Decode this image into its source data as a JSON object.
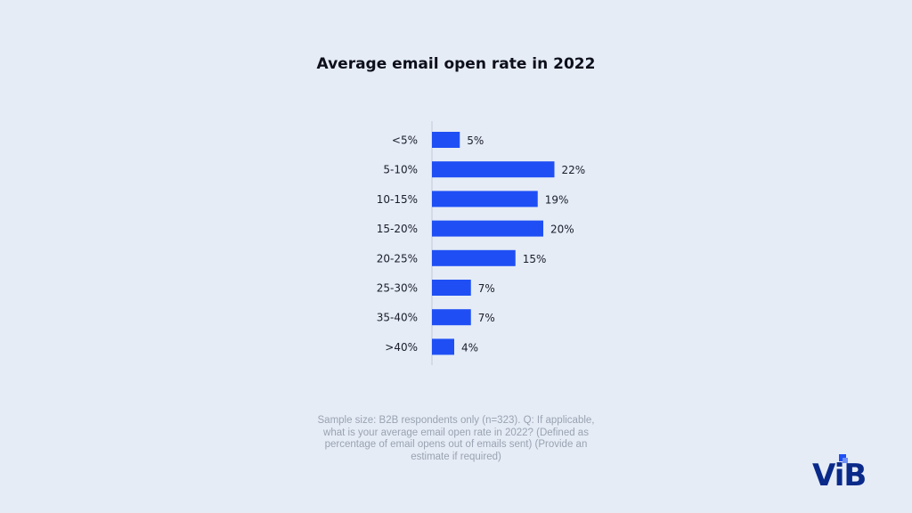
{
  "chart_data": {
    "type": "bar",
    "orientation": "horizontal",
    "title": "Average email open rate in 2022",
    "categories": [
      "<5%",
      "5-10%",
      "10-15%",
      "15-20%",
      "20-25%",
      "25-30%",
      "35-40%",
      ">40%"
    ],
    "values": [
      5,
      22,
      19,
      20,
      15,
      7,
      7,
      4
    ],
    "value_labels": [
      "5%",
      "22%",
      "19%",
      "20%",
      "15%",
      "7%",
      "7%",
      "4%"
    ],
    "xlabel": "",
    "ylabel": "",
    "grid": false,
    "bar_color": "#1f4ff4"
  },
  "footnote": "Sample size: B2B respondents only (n=323). Q: If applicable, what is your average email open rate in 2022? (Defined as percentage of email opens out of emails sent) (Provide an estimate if required)",
  "logo": {
    "text": "ViB",
    "color": "#0a2a8a",
    "accent": "#1f4ff4"
  }
}
